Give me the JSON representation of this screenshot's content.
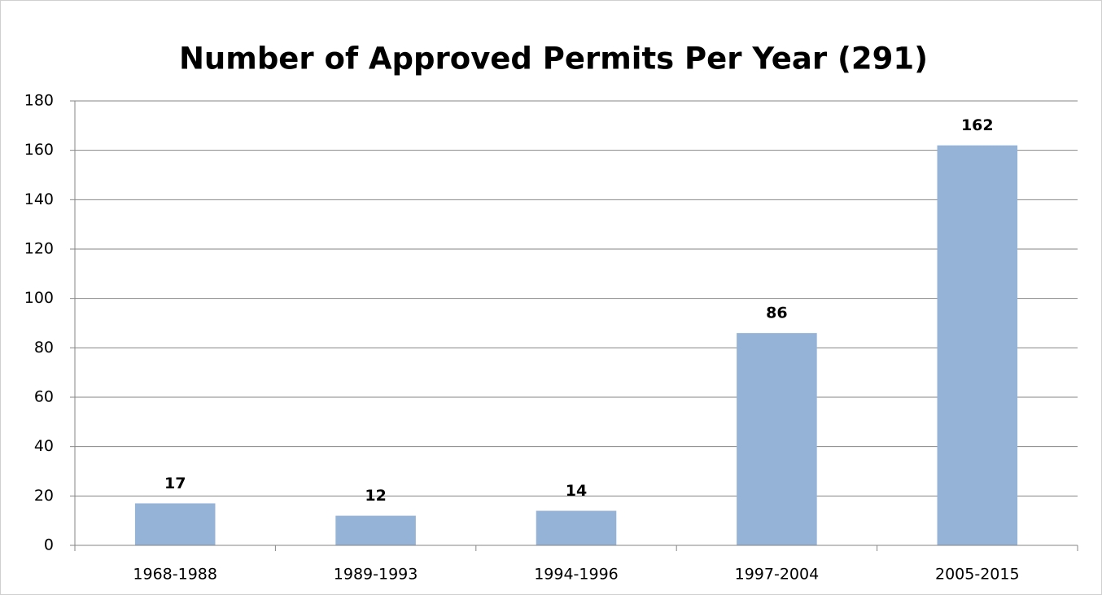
{
  "chart_data": {
    "type": "bar",
    "title": "Number of Approved Permits Per Year (291)",
    "categories": [
      "1968-1988",
      "1989-1993",
      "1994-1996",
      "1997-2004",
      "2005-2015"
    ],
    "values": [
      17,
      12,
      14,
      86,
      162
    ],
    "color": "#95b3d7",
    "ylim": [
      0,
      180
    ],
    "yticks": [
      0,
      20,
      40,
      60,
      80,
      100,
      120,
      140,
      160,
      180
    ],
    "grid": true
  }
}
